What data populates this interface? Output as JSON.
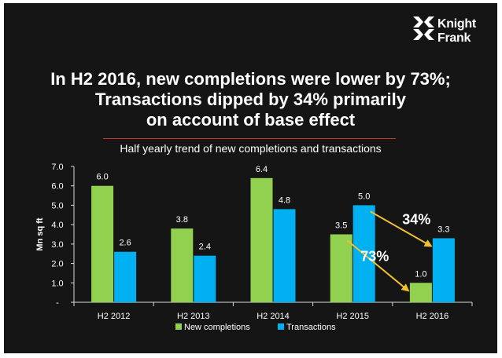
{
  "brand": {
    "line1": "Knight",
    "line2": "Frank"
  },
  "headline": {
    "line1": "In H2 2016, new completions were lower by 73%;",
    "line2": "Transactions dipped by 34% primarily",
    "line3": "on account of base effect"
  },
  "colors": {
    "background": "#151515",
    "new_completions": "#92d050",
    "transactions": "#00b0f0",
    "arrow": "#f2c12e",
    "divider": "#c0392b"
  },
  "chart_data": {
    "type": "bar",
    "title": "Half yearly trend of new completions and transactions",
    "ylabel": "Mn sq ft",
    "xlabel": "",
    "ylim": [
      0,
      7
    ],
    "yticks": [
      0,
      1,
      2,
      3,
      4,
      5,
      6,
      7
    ],
    "ytick_labels": [
      "-",
      "1.0",
      "2.0",
      "3.0",
      "4.0",
      "5.0",
      "6.0",
      "7.0"
    ],
    "categories": [
      "H2 2012",
      "H2 2013",
      "H2 2014",
      "H2 2015",
      "H2 2016"
    ],
    "series": [
      {
        "name": "New completions",
        "values": [
          6.0,
          3.8,
          6.4,
          3.5,
          1.0
        ],
        "labels": [
          "6.0",
          "3.8",
          "6.4",
          "3.5",
          "1.0"
        ]
      },
      {
        "name": "Transactions",
        "values": [
          2.6,
          2.4,
          4.8,
          5.0,
          3.3
        ],
        "labels": [
          "2.6",
          "2.4",
          "4.8",
          "5.0",
          "3.3"
        ]
      }
    ],
    "legend_position": "bottom",
    "annotations": [
      {
        "text": "34%",
        "from": {
          "series": 1,
          "category": 3
        },
        "to": {
          "series": 1,
          "category": 4
        }
      },
      {
        "text": "73%",
        "from": {
          "series": 0,
          "category": 3
        },
        "to": {
          "series": 0,
          "category": 4
        }
      }
    ]
  }
}
